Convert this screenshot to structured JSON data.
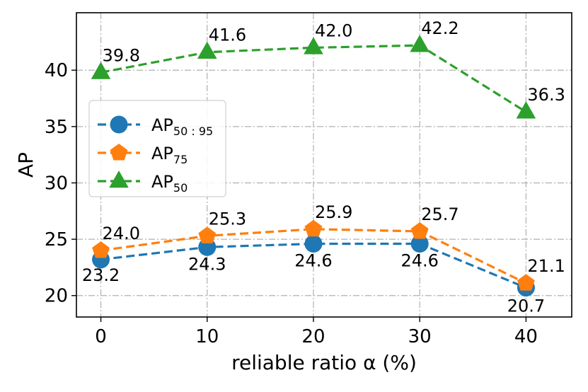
{
  "chart_data": {
    "type": "line",
    "xlabel": "reliable ratio α (%)",
    "ylabel": "AP",
    "x": [
      0,
      10,
      20,
      30,
      40
    ],
    "xlim": [
      -2.3,
      44.3
    ],
    "ylim": [
      18.1,
      45.1
    ],
    "xticks": [
      "0",
      "10",
      "20",
      "30",
      "40"
    ],
    "yticks": [
      "20",
      "25",
      "30",
      "35",
      "40"
    ],
    "grid": true,
    "legend_position": "center-left",
    "series": [
      {
        "name": "AP50:95",
        "legend_main": "AP",
        "legend_sub": "50 : 95",
        "color": "#1f77b4",
        "marker": "circle",
        "values": [
          23.2,
          24.3,
          24.6,
          24.6,
          20.7
        ],
        "labels": [
          "23.2",
          "24.3",
          "24.6",
          "24.6",
          "20.7"
        ]
      },
      {
        "name": "AP75",
        "legend_main": "AP",
        "legend_sub": "75",
        "color": "#ff7f0e",
        "marker": "pentagon",
        "values": [
          24.0,
          25.3,
          25.9,
          25.7,
          21.1
        ],
        "labels": [
          "24.0",
          "25.3",
          "25.9",
          "25.7",
          "21.1"
        ]
      },
      {
        "name": "AP50",
        "legend_main": "AP",
        "legend_sub": "50",
        "color": "#2ca02c",
        "marker": "triangle",
        "values": [
          39.8,
          41.6,
          42.0,
          42.2,
          36.3
        ],
        "labels": [
          "39.8",
          "41.6",
          "42.0",
          "42.2",
          "36.3"
        ]
      }
    ]
  }
}
